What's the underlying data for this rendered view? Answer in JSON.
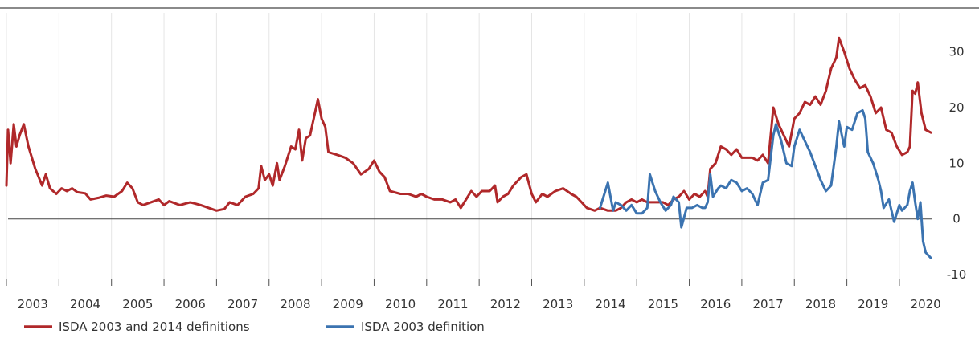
{
  "chart_data": {
    "type": "line",
    "title": "",
    "xlabel": "",
    "ylabel": "",
    "x_range": [
      2003.0,
      2020.35
    ],
    "ylim": [
      -12,
      37
    ],
    "y_ticks": [
      -10,
      0,
      10,
      20,
      30
    ],
    "x_tick_labels": [
      "2003",
      "2004",
      "2005",
      "2006",
      "2007",
      "2008",
      "2009",
      "2010",
      "2011",
      "2012",
      "2013",
      "2014",
      "2015",
      "2016",
      "2017",
      "2018",
      "2019",
      "2020"
    ],
    "grid": "vertical",
    "y_axis_position": "right",
    "legend_position": "bottom-left",
    "colors": {
      "red_series": "#b0282a",
      "blue_series": "#3b73b0",
      "grid": "#e5e5e5",
      "zero_line": "#444444"
    },
    "series": [
      {
        "name": "ISDA 2003 and 2014 definitions",
        "color": "#b0282a",
        "points": [
          [
            2003.0,
            6
          ],
          [
            2003.03,
            16
          ],
          [
            2003.08,
            10
          ],
          [
            2003.14,
            17
          ],
          [
            2003.19,
            13
          ],
          [
            2003.25,
            15
          ],
          [
            2003.33,
            17
          ],
          [
            2003.42,
            13
          ],
          [
            2003.55,
            9
          ],
          [
            2003.68,
            6
          ],
          [
            2003.75,
            8
          ],
          [
            2003.83,
            5.5
          ],
          [
            2003.95,
            4.5
          ],
          [
            2004.05,
            5.5
          ],
          [
            2004.15,
            5
          ],
          [
            2004.25,
            5.5
          ],
          [
            2004.35,
            4.8
          ],
          [
            2004.5,
            4.6
          ],
          [
            2004.6,
            3.5
          ],
          [
            2004.75,
            3.8
          ],
          [
            2004.9,
            4.2
          ],
          [
            2005.05,
            4
          ],
          [
            2005.2,
            5
          ],
          [
            2005.3,
            6.5
          ],
          [
            2005.4,
            5.5
          ],
          [
            2005.5,
            3
          ],
          [
            2005.6,
            2.5
          ],
          [
            2005.75,
            3
          ],
          [
            2005.9,
            3.5
          ],
          [
            2006.0,
            2.5
          ],
          [
            2006.1,
            3.2
          ],
          [
            2006.3,
            2.5
          ],
          [
            2006.5,
            3
          ],
          [
            2006.7,
            2.5
          ],
          [
            2006.85,
            2
          ],
          [
            2007.0,
            1.5
          ],
          [
            2007.15,
            1.8
          ],
          [
            2007.25,
            3
          ],
          [
            2007.4,
            2.5
          ],
          [
            2007.55,
            4
          ],
          [
            2007.7,
            4.5
          ],
          [
            2007.8,
            5.5
          ],
          [
            2007.85,
            9.5
          ],
          [
            2007.92,
            7
          ],
          [
            2008.0,
            8
          ],
          [
            2008.07,
            6
          ],
          [
            2008.15,
            10
          ],
          [
            2008.2,
            7
          ],
          [
            2008.3,
            9.5
          ],
          [
            2008.42,
            13
          ],
          [
            2008.5,
            12.5
          ],
          [
            2008.57,
            16
          ],
          [
            2008.63,
            10.5
          ],
          [
            2008.7,
            14.5
          ],
          [
            2008.78,
            15
          ],
          [
            2008.85,
            18
          ],
          [
            2008.93,
            21.5
          ],
          [
            2009.0,
            18
          ],
          [
            2009.07,
            16.5
          ],
          [
            2009.13,
            12
          ],
          [
            2009.3,
            11.5
          ],
          [
            2009.45,
            11
          ],
          [
            2009.6,
            10
          ],
          [
            2009.75,
            8
          ],
          [
            2009.9,
            9
          ],
          [
            2010.0,
            10.5
          ],
          [
            2010.1,
            8.5
          ],
          [
            2010.2,
            7.5
          ],
          [
            2010.3,
            5
          ],
          [
            2010.5,
            4.5
          ],
          [
            2010.65,
            4.5
          ],
          [
            2010.8,
            4
          ],
          [
            2010.9,
            4.5
          ],
          [
            2011.0,
            4
          ],
          [
            2011.15,
            3.5
          ],
          [
            2011.3,
            3.5
          ],
          [
            2011.45,
            3
          ],
          [
            2011.55,
            3.5
          ],
          [
            2011.65,
            2
          ],
          [
            2011.75,
            3.5
          ],
          [
            2011.85,
            5
          ],
          [
            2011.95,
            4
          ],
          [
            2012.05,
            5
          ],
          [
            2012.2,
            5
          ],
          [
            2012.3,
            6
          ],
          [
            2012.35,
            3
          ],
          [
            2012.45,
            4
          ],
          [
            2012.55,
            4.5
          ],
          [
            2012.65,
            6
          ],
          [
            2012.8,
            7.5
          ],
          [
            2012.9,
            8
          ],
          [
            2013.0,
            4.5
          ],
          [
            2013.08,
            3
          ],
          [
            2013.2,
            4.5
          ],
          [
            2013.3,
            4
          ],
          [
            2013.45,
            5
          ],
          [
            2013.6,
            5.5
          ],
          [
            2013.75,
            4.5
          ],
          [
            2013.85,
            4
          ],
          [
            2013.95,
            3
          ],
          [
            2014.05,
            2
          ],
          [
            2014.2,
            1.5
          ],
          [
            2014.3,
            2
          ],
          [
            2014.45,
            1.5
          ],
          [
            2014.6,
            1.5
          ],
          [
            2014.7,
            2
          ],
          [
            2014.8,
            3
          ],
          [
            2014.9,
            3.5
          ],
          [
            2015.0,
            3
          ],
          [
            2015.1,
            3.5
          ],
          [
            2015.2,
            3
          ],
          [
            2015.35,
            3
          ],
          [
            2015.5,
            3
          ],
          [
            2015.6,
            2.5
          ],
          [
            2015.7,
            3.5
          ],
          [
            2015.8,
            4
          ],
          [
            2015.9,
            5
          ],
          [
            2016.0,
            3.5
          ],
          [
            2016.1,
            4.5
          ],
          [
            2016.2,
            4
          ],
          [
            2016.3,
            5
          ],
          [
            2016.35,
            4
          ],
          [
            2016.4,
            9
          ],
          [
            2016.5,
            10
          ],
          [
            2016.6,
            13
          ],
          [
            2016.7,
            12.5
          ],
          [
            2016.8,
            11.5
          ],
          [
            2016.9,
            12.5
          ],
          [
            2017.0,
            11
          ],
          [
            2017.1,
            11
          ],
          [
            2017.2,
            11
          ],
          [
            2017.3,
            10.5
          ],
          [
            2017.4,
            11.5
          ],
          [
            2017.5,
            10
          ],
          [
            2017.6,
            20
          ],
          [
            2017.7,
            17
          ],
          [
            2017.8,
            15
          ],
          [
            2017.9,
            13
          ],
          [
            2018.0,
            18
          ],
          [
            2018.1,
            19
          ],
          [
            2018.2,
            21
          ],
          [
            2018.3,
            20.5
          ],
          [
            2018.4,
            22
          ],
          [
            2018.5,
            20.5
          ],
          [
            2018.6,
            23
          ],
          [
            2018.7,
            27
          ],
          [
            2018.8,
            29
          ],
          [
            2018.85,
            32.5
          ],
          [
            2018.95,
            30
          ],
          [
            2019.05,
            27
          ],
          [
            2019.15,
            25
          ],
          [
            2019.25,
            23.5
          ],
          [
            2019.35,
            24
          ],
          [
            2019.45,
            22
          ],
          [
            2019.55,
            19
          ],
          [
            2019.65,
            20
          ],
          [
            2019.75,
            16
          ],
          [
            2019.85,
            15.5
          ],
          [
            2019.95,
            13
          ],
          [
            2020.05,
            11.5
          ],
          [
            2020.15,
            12
          ],
          [
            2020.2,
            13
          ],
          [
            2020.25,
            23
          ],
          [
            2020.3,
            22.5
          ],
          [
            2020.35,
            24.5
          ],
          [
            2020.42,
            19
          ],
          [
            2020.5,
            16
          ],
          [
            2020.6,
            15.5
          ]
        ]
      },
      {
        "name": "ISDA 2003 definition",
        "color": "#3b73b0",
        "points": [
          [
            2014.3,
            2
          ],
          [
            2014.4,
            5
          ],
          [
            2014.45,
            6.5
          ],
          [
            2014.55,
            1.5
          ],
          [
            2014.6,
            3
          ],
          [
            2014.7,
            2.5
          ],
          [
            2014.8,
            1.5
          ],
          [
            2014.9,
            2.5
          ],
          [
            2015.0,
            1
          ],
          [
            2015.1,
            1
          ],
          [
            2015.2,
            2
          ],
          [
            2015.25,
            8
          ],
          [
            2015.35,
            5
          ],
          [
            2015.45,
            3
          ],
          [
            2015.55,
            1.5
          ],
          [
            2015.65,
            2.5
          ],
          [
            2015.7,
            4
          ],
          [
            2015.8,
            3
          ],
          [
            2015.85,
            -1.5
          ],
          [
            2015.95,
            2
          ],
          [
            2016.05,
            2
          ],
          [
            2016.15,
            2.5
          ],
          [
            2016.25,
            2
          ],
          [
            2016.3,
            2
          ],
          [
            2016.35,
            3
          ],
          [
            2016.4,
            8
          ],
          [
            2016.45,
            4
          ],
          [
            2016.55,
            5.5
          ],
          [
            2016.6,
            6
          ],
          [
            2016.7,
            5.5
          ],
          [
            2016.8,
            7
          ],
          [
            2016.9,
            6.5
          ],
          [
            2017.0,
            5
          ],
          [
            2017.1,
            5.5
          ],
          [
            2017.2,
            4.5
          ],
          [
            2017.3,
            2.5
          ],
          [
            2017.4,
            6.5
          ],
          [
            2017.5,
            7
          ],
          [
            2017.55,
            11
          ],
          [
            2017.6,
            15
          ],
          [
            2017.65,
            17
          ],
          [
            2017.75,
            14
          ],
          [
            2017.85,
            10
          ],
          [
            2017.95,
            9.5
          ],
          [
            2018.0,
            13
          ],
          [
            2018.1,
            16
          ],
          [
            2018.2,
            14
          ],
          [
            2018.3,
            12
          ],
          [
            2018.4,
            9.5
          ],
          [
            2018.5,
            7
          ],
          [
            2018.6,
            5
          ],
          [
            2018.7,
            6
          ],
          [
            2018.8,
            13
          ],
          [
            2018.85,
            17.5
          ],
          [
            2018.95,
            13
          ],
          [
            2019.0,
            16.5
          ],
          [
            2019.1,
            16
          ],
          [
            2019.2,
            19
          ],
          [
            2019.3,
            19.5
          ],
          [
            2019.35,
            18
          ],
          [
            2019.4,
            12
          ],
          [
            2019.5,
            10
          ],
          [
            2019.6,
            7
          ],
          [
            2019.65,
            5
          ],
          [
            2019.7,
            2
          ],
          [
            2019.8,
            3.5
          ],
          [
            2019.85,
            1.5
          ],
          [
            2019.9,
            -0.5
          ],
          [
            2020.0,
            2.5
          ],
          [
            2020.05,
            1.5
          ],
          [
            2020.15,
            2.5
          ],
          [
            2020.2,
            5
          ],
          [
            2020.25,
            6.5
          ],
          [
            2020.3,
            3
          ],
          [
            2020.35,
            0
          ],
          [
            2020.4,
            3
          ],
          [
            2020.45,
            -4
          ],
          [
            2020.5,
            -6
          ],
          [
            2020.6,
            -7
          ]
        ]
      }
    ]
  }
}
